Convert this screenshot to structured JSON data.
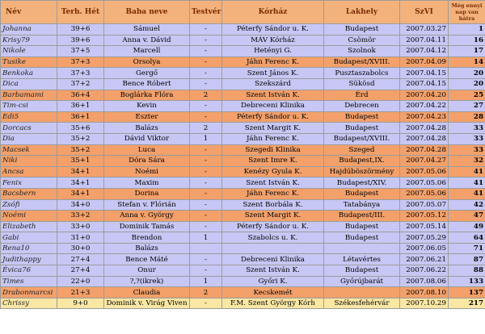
{
  "headers": [
    "Név",
    "Terh. Hét",
    "Baba neve",
    "Testvér",
    "Kórház",
    "Lakhely",
    "SzVI",
    "Még ennyi nap van hátra"
  ],
  "rows": [
    {
      "theme": "blue",
      "cells": [
        "Johanna",
        "39+6",
        "Sámuel",
        "-",
        "Péterfy Sándor u. K.",
        "Budapest",
        "2007.03.27",
        "1"
      ]
    },
    {
      "theme": "blue",
      "cells": [
        "Krisy79",
        "39+6",
        "Anna v. Dávid",
        "-",
        "MÁV Kórház",
        "Csömör",
        "2007.04.11",
        "16"
      ]
    },
    {
      "theme": "blue",
      "cells": [
        "Nikole",
        "37+5",
        "Marcell",
        "-",
        "Hetényi G.",
        "Szolnok",
        "2007.04.12",
        "17"
      ]
    },
    {
      "theme": "orange",
      "cells": [
        "Tusike",
        "37+3",
        "Orsolya",
        "-",
        "Jáhn Ferenc K.",
        "Budapest/XVIII.",
        "2007.04.09",
        "14"
      ]
    },
    {
      "theme": "blue",
      "cells": [
        "Benkoka",
        "37+3",
        "Gergő",
        "-",
        "Szent János K.",
        "Pusztaszabolcs",
        "2007.04.15",
        "20"
      ]
    },
    {
      "theme": "blue",
      "cells": [
        "Dica",
        "37+2",
        "Bence Róbert",
        "-",
        "Szekszárd",
        "Sükösd",
        "2007.04.15",
        "20"
      ]
    },
    {
      "theme": "orange",
      "cells": [
        "Barbamami",
        "36+4",
        "Boglárka Flóra",
        "2",
        "Szent István K.",
        "Érd",
        "2007.04.20",
        "25"
      ]
    },
    {
      "theme": "blue",
      "cells": [
        "Tim-csi",
        "36+1",
        "Kevin",
        "-",
        "Debreceni Klinika",
        "Debrecen",
        "2007.04.22",
        "27"
      ]
    },
    {
      "theme": "orange",
      "cells": [
        "Edi5",
        "36+1",
        "Eszter",
        "-",
        "Péterfy Sándor u. K.",
        "Budapest",
        "2007.04.23",
        "28"
      ]
    },
    {
      "theme": "blue",
      "cells": [
        "Dorcacs",
        "35+6",
        "Balázs",
        "2",
        "Szent Margit K.",
        "Budapest",
        "2007.04.28",
        "33"
      ]
    },
    {
      "theme": "blue",
      "cells": [
        "Dia",
        "35+2",
        "Dávid Viktor",
        "1",
        "Jáhn Ferenc K.",
        "Budapest/XVIII.",
        "2007.04.28",
        "33"
      ]
    },
    {
      "theme": "orange",
      "cells": [
        "Macsek",
        "35+2",
        "Luca",
        "-",
        "Szegedi Klinika",
        "Szeged",
        "2007.04.28",
        "33"
      ]
    },
    {
      "theme": "orange",
      "cells": [
        "Niki",
        "35+1",
        "Dóra Sára",
        "-",
        "Szent Imre K.",
        "Budapest,IX.",
        "2007.04.27",
        "32"
      ]
    },
    {
      "theme": "orange",
      "cells": [
        "Ancsa",
        "34+1",
        "Noémi",
        "-",
        "Kenézy Gyula K.",
        "Hajdúböszörmény",
        "2007.05.06",
        "41"
      ]
    },
    {
      "theme": "blue",
      "cells": [
        "Fenix",
        "34+1",
        "Maxim",
        "-",
        "Szent István K.",
        "Budapest/XIV.",
        "2007.05.06",
        "41"
      ]
    },
    {
      "theme": "orange",
      "cells": [
        "Bacsbern",
        "34+1",
        "Dorina",
        "-",
        "Jáhn Ferenc K.",
        "Budapest",
        "2007.05.06",
        "41"
      ]
    },
    {
      "theme": "blue",
      "cells": [
        "Zsófi",
        "34+0",
        "Stefan v. Flórián",
        "-",
        "Szent Borbála K.",
        "Tatabánya",
        "2007.05.07",
        "42"
      ]
    },
    {
      "theme": "orange",
      "cells": [
        "Noémi",
        "33+2",
        "Anna v. György",
        "-",
        "Szent Margit K.",
        "Budapest/III.",
        "2007.05.12",
        "47"
      ]
    },
    {
      "theme": "blue",
      "cells": [
        "Elizabeth",
        "33+0",
        "Dominik Tamás",
        "-",
        "Péterfy Sándor u. K.",
        "Budapest",
        "2007.05.14",
        "49"
      ]
    },
    {
      "theme": "blue",
      "cells": [
        "Gabi",
        "31+0",
        "Brendon",
        "1",
        "Szabolcs u. K.",
        "Budapest",
        "2007.05.29",
        "64"
      ]
    },
    {
      "theme": "blue",
      "cells": [
        "Rena10",
        "30+0",
        "Balázs",
        "",
        "",
        "",
        "2007.06.05",
        "71"
      ]
    },
    {
      "theme": "blue",
      "cells": [
        "Judithappy",
        "27+4",
        "Bence Máté",
        "-",
        "Debreceni Klinika",
        "Létavértes",
        "2007.06.21",
        "87"
      ]
    },
    {
      "theme": "blue",
      "cells": [
        "Évica76",
        "27+4",
        "Onur",
        "-",
        "Szent István K.",
        "Budapest",
        "2007.06.22",
        "88"
      ]
    },
    {
      "theme": "blue",
      "cells": [
        "Times",
        "22+0",
        "?,?(ikrek)",
        "1",
        "Győri K.",
        "Győrújbarát",
        "2007.08.06",
        "133"
      ]
    },
    {
      "theme": "orange",
      "cells": [
        "Drabonmarcsi",
        "21+3",
        "Claudia",
        "2",
        "Kecskemét",
        "",
        "2007.08.10",
        "137"
      ]
    },
    {
      "theme": "yellow",
      "cells": [
        "Chrissy",
        "9+0",
        "Dominik v. Virág Viven",
        "-",
        "F.M. Szent György Kórh",
        "Székesfehérvár",
        "2007.10.29",
        "217"
      ]
    }
  ]
}
